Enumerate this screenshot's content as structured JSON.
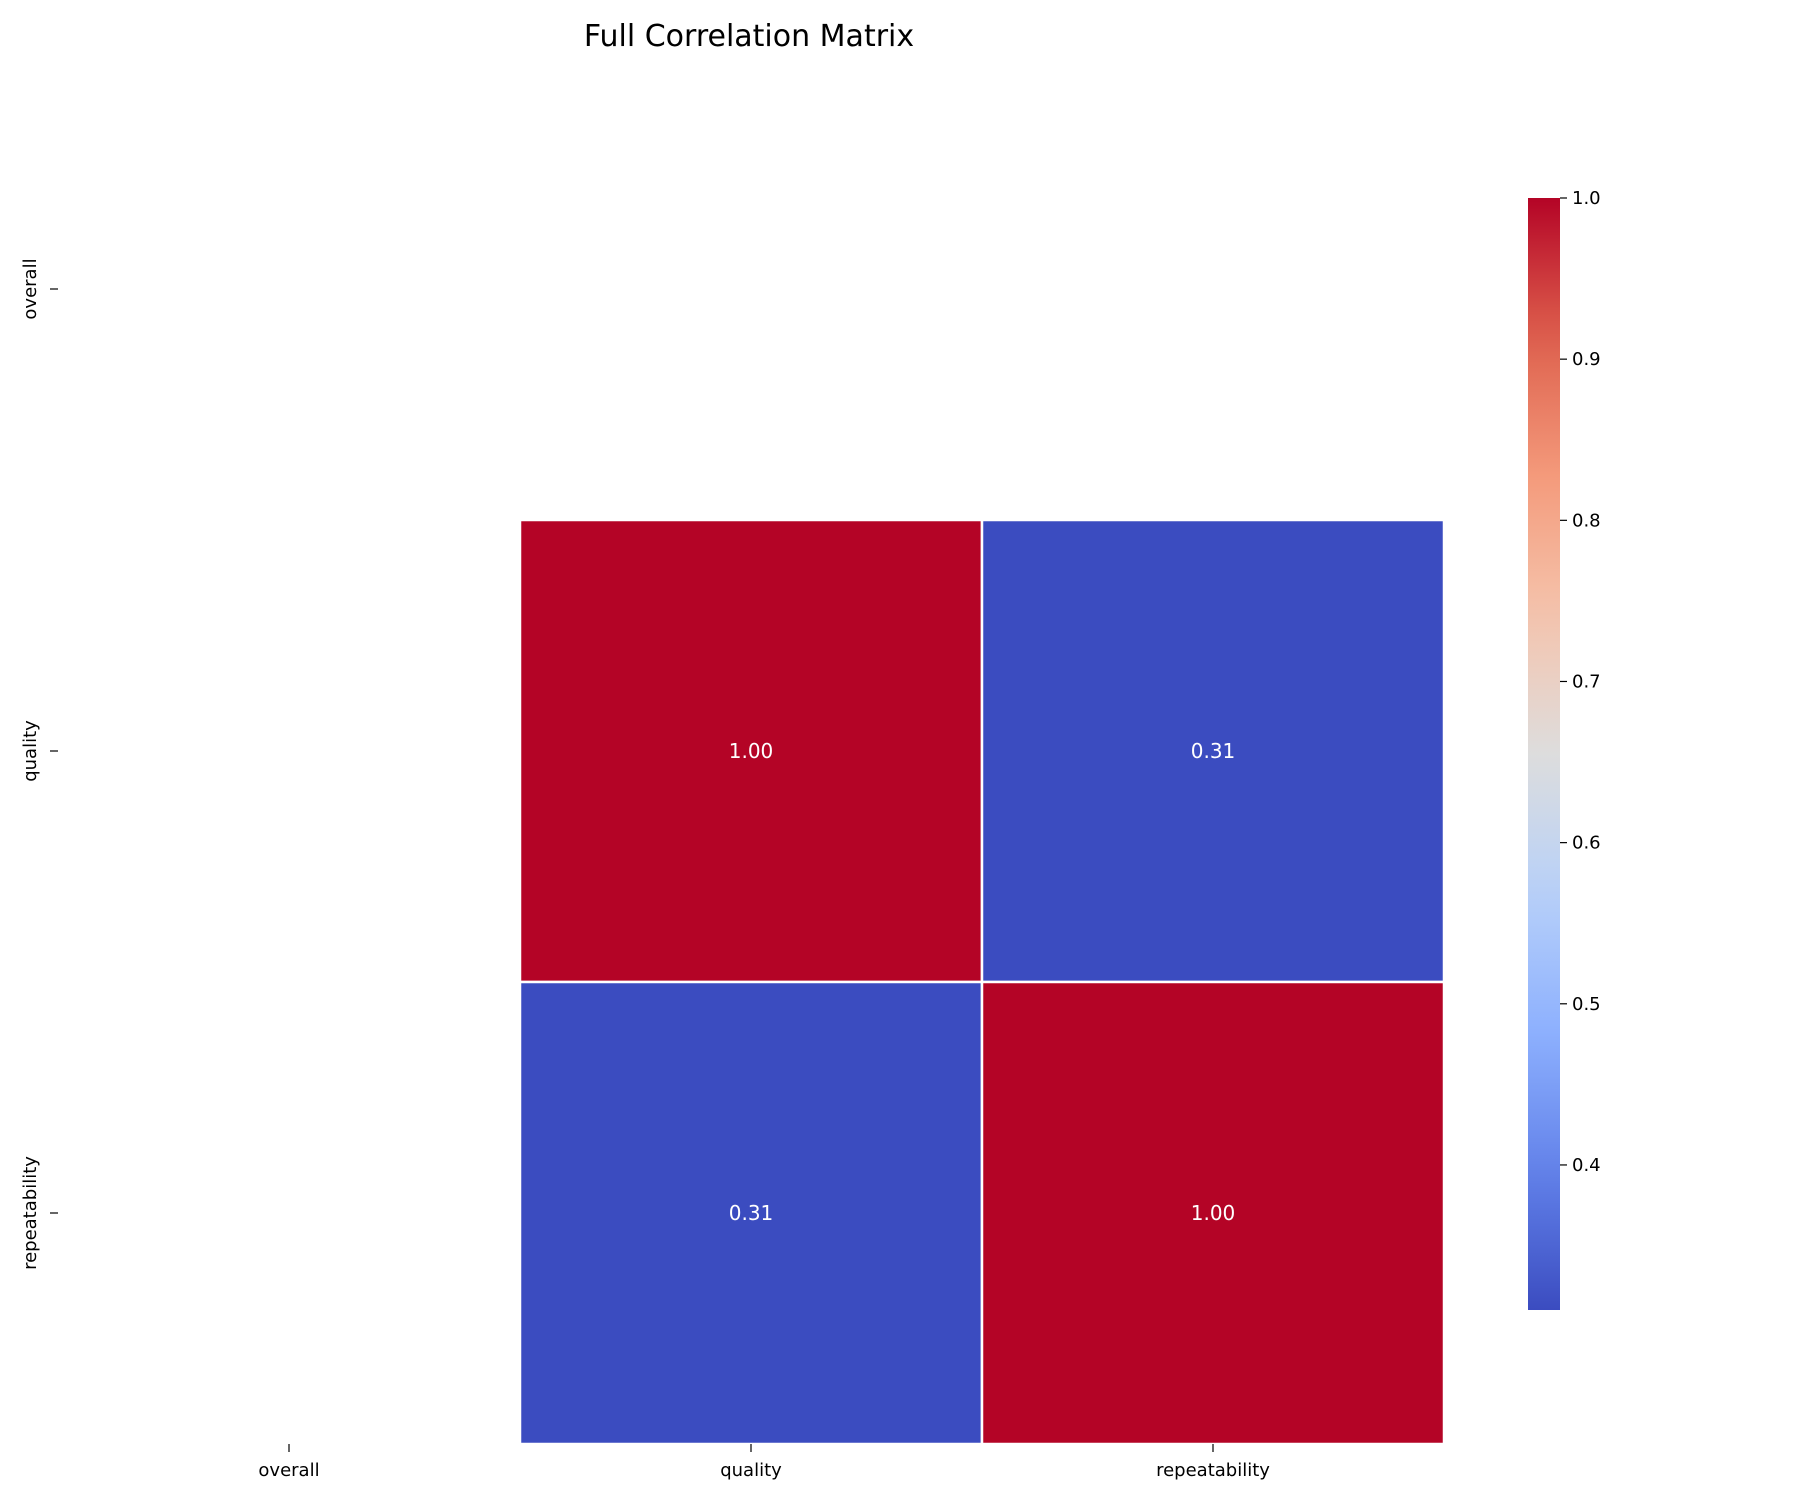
{
  "chart_data": {
    "type": "heatmap",
    "title": "Full Correlation Matrix",
    "x_categories": [
      "overall",
      "quality",
      "repeatability"
    ],
    "y_categories": [
      "overall",
      "quality",
      "repeatability"
    ],
    "matrix": [
      [
        null,
        null,
        null
      ],
      [
        null,
        1.0,
        0.31
      ],
      [
        null,
        0.31,
        1.0
      ]
    ],
    "annotations": [
      [
        null,
        null,
        null
      ],
      [
        null,
        "1.00",
        "0.31"
      ],
      [
        null,
        "0.31",
        "1.00"
      ]
    ],
    "colormap": "coolwarm",
    "colorbar": {
      "range": [
        0.31,
        1.0
      ],
      "ticks": [
        0.4,
        0.5,
        0.6,
        0.7,
        0.8,
        0.9,
        1.0
      ],
      "tick_labels": [
        "0.4",
        "0.5",
        "0.6",
        "0.7",
        "0.8",
        "0.9",
        "1.0"
      ]
    },
    "cell_colors": {
      "high": "#b40426",
      "low": "#3b4cc0",
      "annotation_text": "#ffffff",
      "gridline": "#ffffff"
    }
  }
}
